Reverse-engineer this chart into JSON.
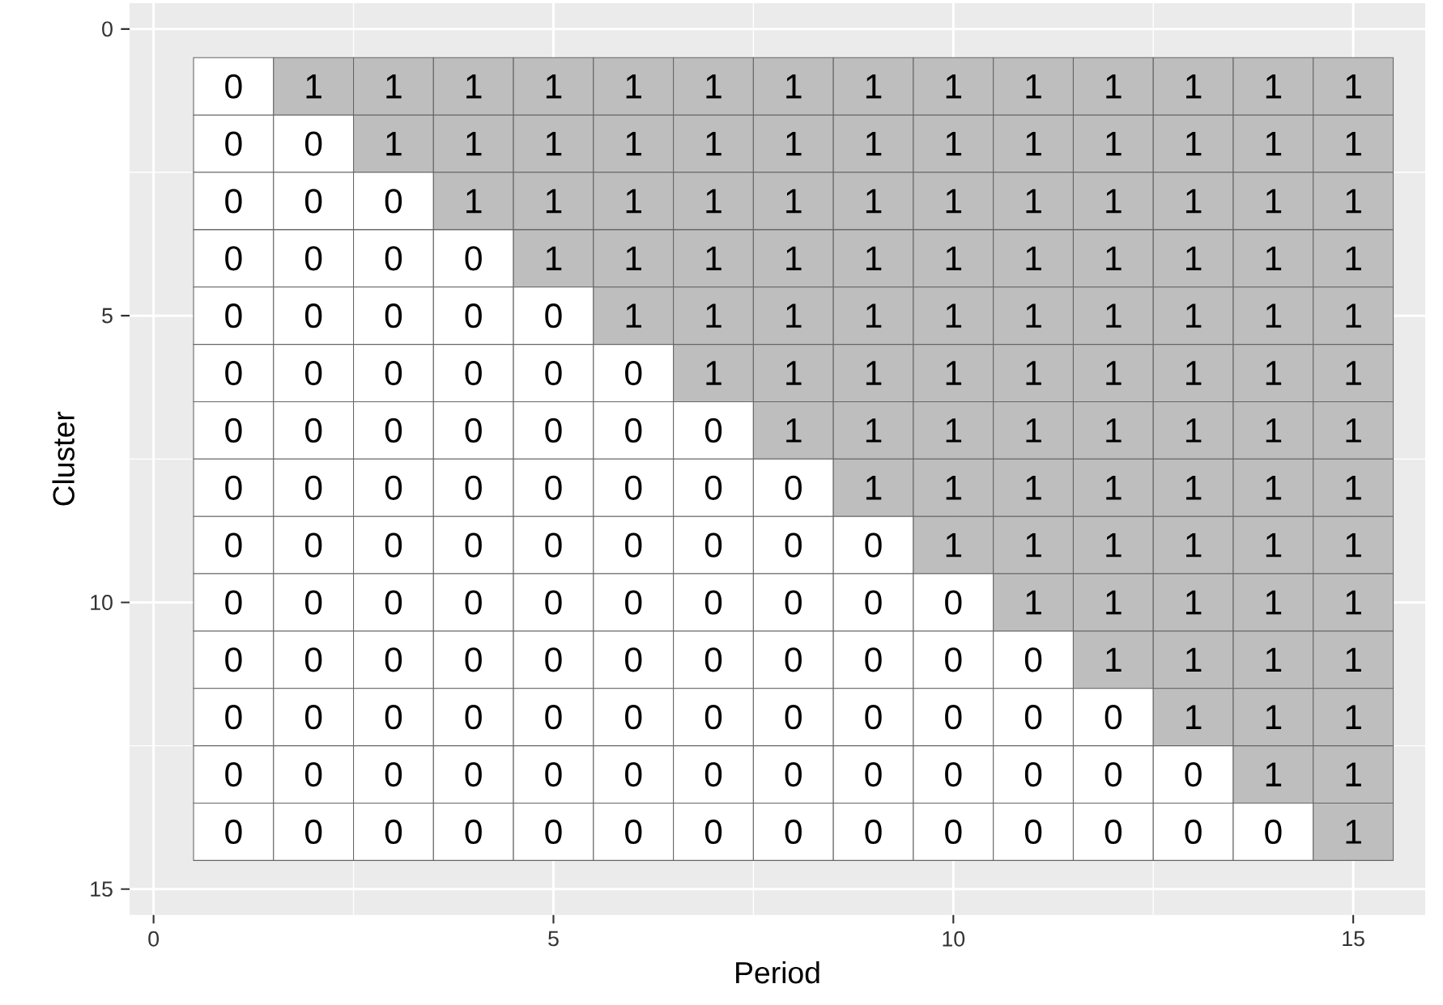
{
  "chart_data": {
    "type": "heatmap",
    "xlabel": "Period",
    "ylabel": "Cluster",
    "x": [
      1,
      2,
      3,
      4,
      5,
      6,
      7,
      8,
      9,
      10,
      11,
      12,
      13,
      14,
      15
    ],
    "y": [
      1,
      2,
      3,
      4,
      5,
      6,
      7,
      8,
      9,
      10,
      11,
      12,
      13,
      14
    ],
    "cells": [
      [
        0,
        1,
        1,
        1,
        1,
        1,
        1,
        1,
        1,
        1,
        1,
        1,
        1,
        1,
        1
      ],
      [
        0,
        0,
        1,
        1,
        1,
        1,
        1,
        1,
        1,
        1,
        1,
        1,
        1,
        1,
        1
      ],
      [
        0,
        0,
        0,
        1,
        1,
        1,
        1,
        1,
        1,
        1,
        1,
        1,
        1,
        1,
        1
      ],
      [
        0,
        0,
        0,
        0,
        1,
        1,
        1,
        1,
        1,
        1,
        1,
        1,
        1,
        1,
        1
      ],
      [
        0,
        0,
        0,
        0,
        0,
        1,
        1,
        1,
        1,
        1,
        1,
        1,
        1,
        1,
        1
      ],
      [
        0,
        0,
        0,
        0,
        0,
        0,
        1,
        1,
        1,
        1,
        1,
        1,
        1,
        1,
        1
      ],
      [
        0,
        0,
        0,
        0,
        0,
        0,
        0,
        1,
        1,
        1,
        1,
        1,
        1,
        1,
        1
      ],
      [
        0,
        0,
        0,
        0,
        0,
        0,
        0,
        0,
        1,
        1,
        1,
        1,
        1,
        1,
        1
      ],
      [
        0,
        0,
        0,
        0,
        0,
        0,
        0,
        0,
        0,
        1,
        1,
        1,
        1,
        1,
        1
      ],
      [
        0,
        0,
        0,
        0,
        0,
        0,
        0,
        0,
        0,
        0,
        1,
        1,
        1,
        1,
        1
      ],
      [
        0,
        0,
        0,
        0,
        0,
        0,
        0,
        0,
        0,
        0,
        0,
        1,
        1,
        1,
        1
      ],
      [
        0,
        0,
        0,
        0,
        0,
        0,
        0,
        0,
        0,
        0,
        0,
        0,
        1,
        1,
        1
      ],
      [
        0,
        0,
        0,
        0,
        0,
        0,
        0,
        0,
        0,
        0,
        0,
        0,
        0,
        1,
        1
      ],
      [
        0,
        0,
        0,
        0,
        0,
        0,
        0,
        0,
        0,
        0,
        0,
        0,
        0,
        0,
        1
      ]
    ],
    "colors": [
      "#ffffff",
      "#bebebe"
    ],
    "data_labels": true,
    "xlim": [
      -0.3,
      15.9
    ],
    "ylim": [
      15.45,
      -0.45
    ],
    "xticks": [
      0,
      5,
      10,
      15
    ],
    "yticks": [
      0,
      5,
      10,
      15
    ],
    "grid": true
  }
}
